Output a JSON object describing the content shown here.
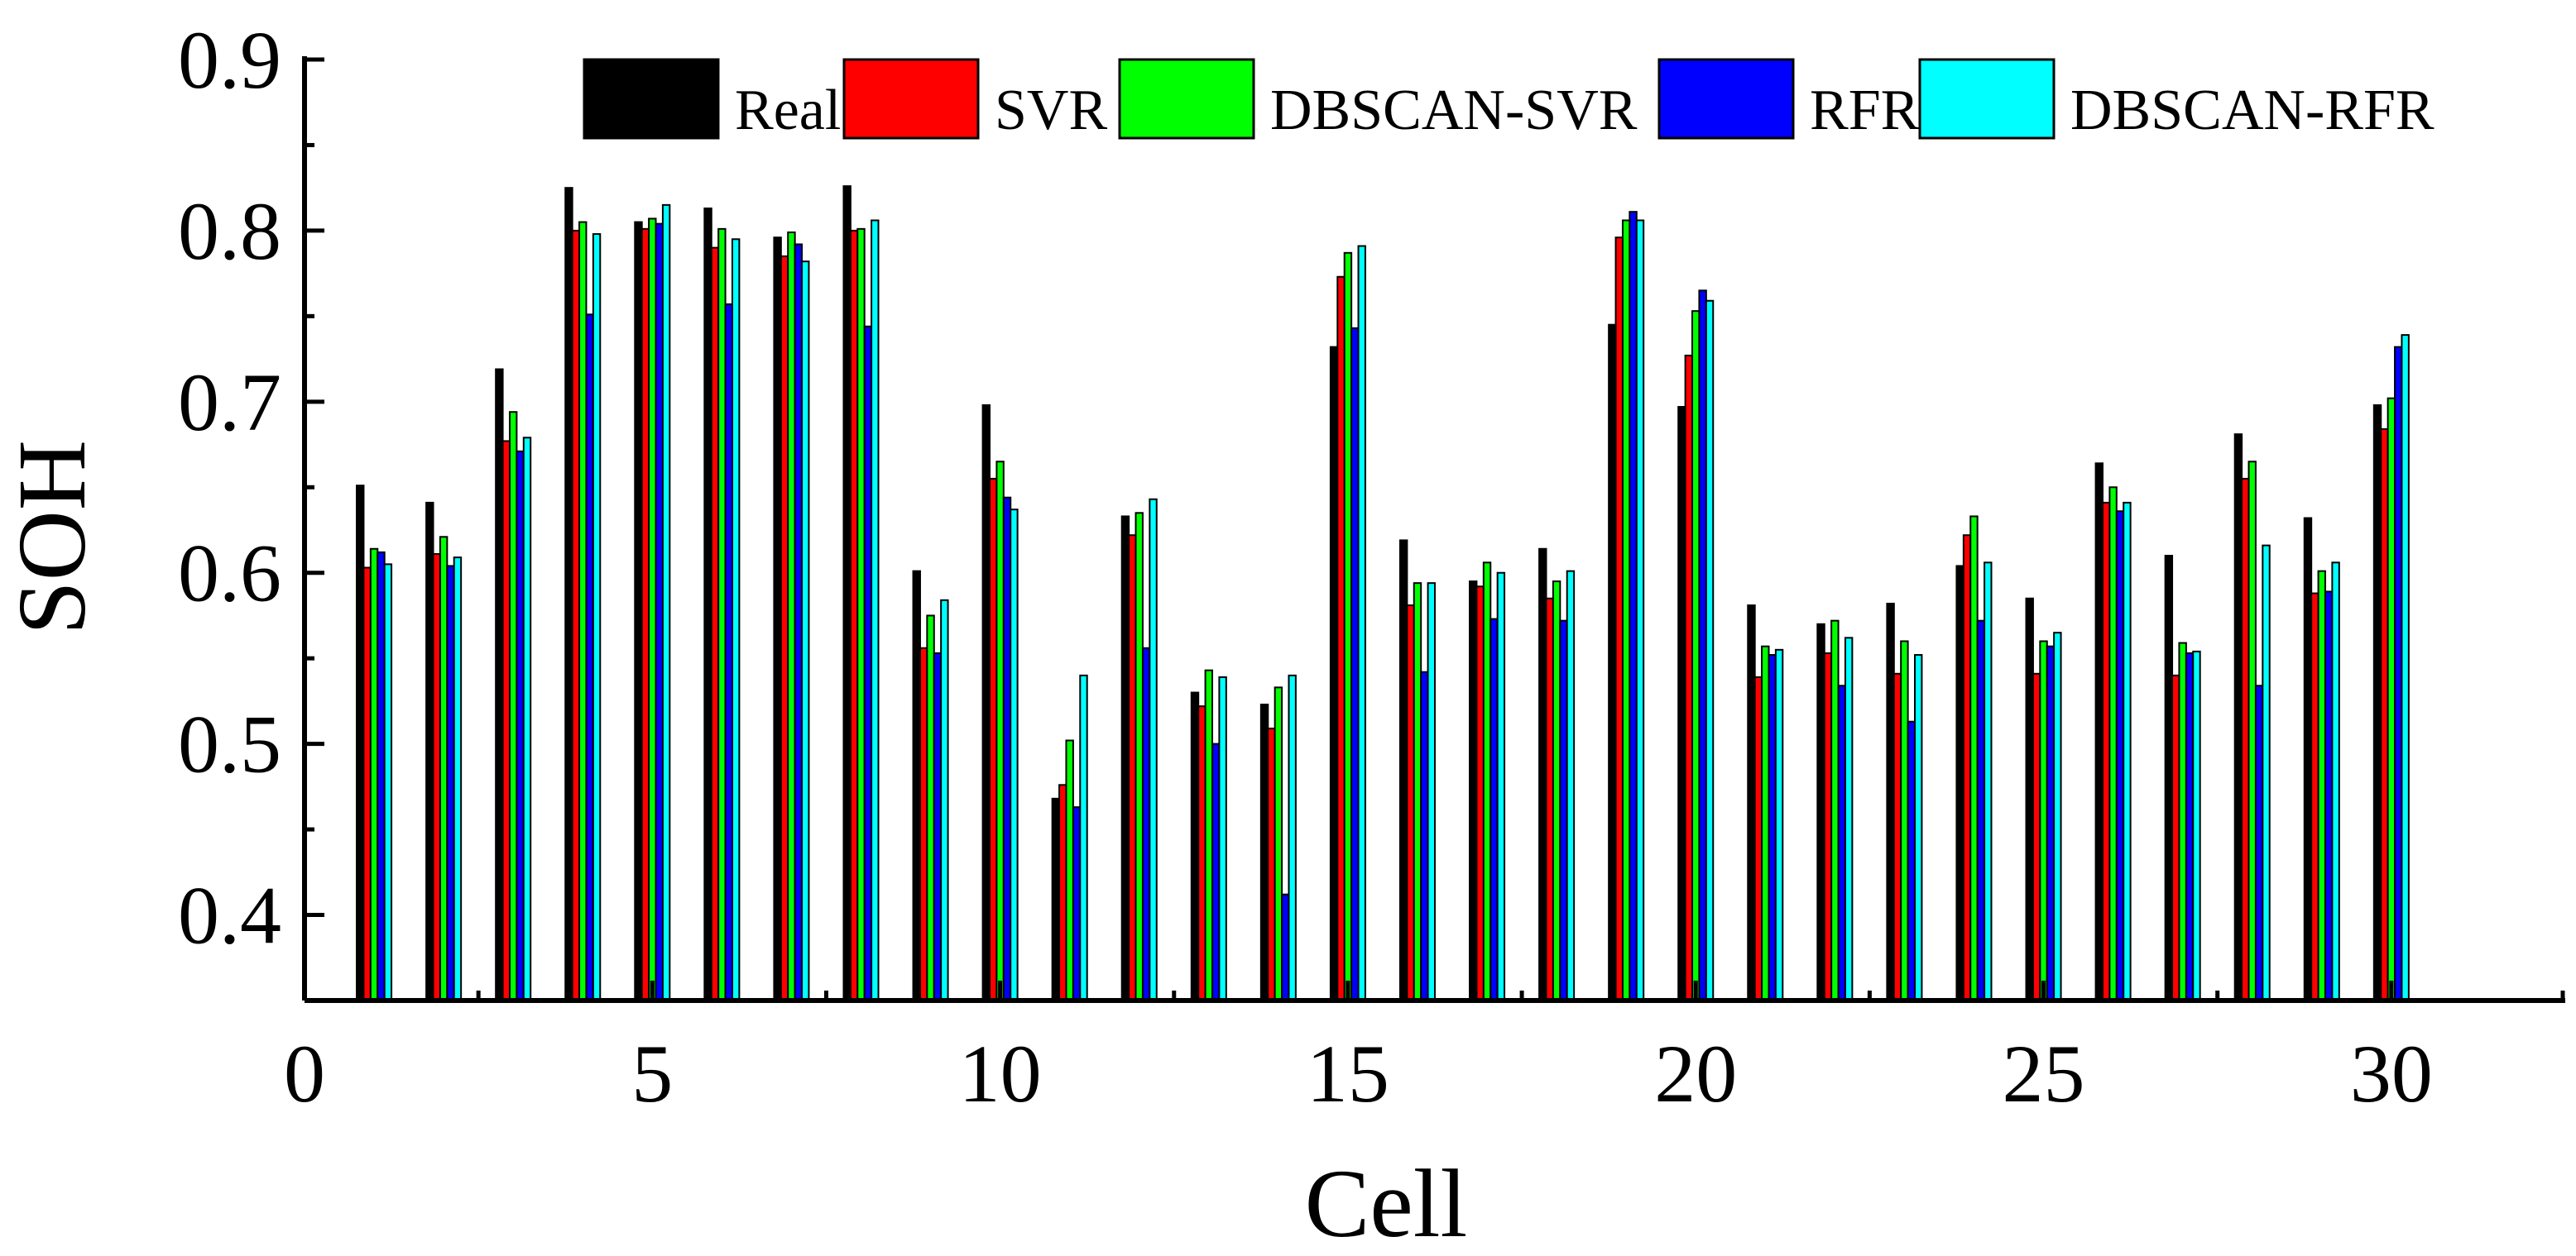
{
  "chart_data": {
    "type": "bar",
    "title": "",
    "xlabel": "Cell",
    "ylabel": "SOH",
    "xlim": [
      0,
      32.5
    ],
    "ylim": [
      0.35,
      0.9
    ],
    "xticks": [
      0,
      5,
      10,
      15,
      20,
      25,
      30
    ],
    "xtick_labels": [
      "0",
      "5",
      "10",
      "15",
      "20",
      "25",
      "30"
    ],
    "yticks": [
      0.4,
      0.5,
      0.6,
      0.7,
      0.8,
      0.9
    ],
    "ytick_labels": [
      "0.4",
      "0.5",
      "0.6",
      "0.7",
      "0.8",
      "0.9"
    ],
    "grid": false,
    "legend_position": "top",
    "categories": [
      1,
      2,
      3,
      4,
      5,
      6,
      7,
      8,
      9,
      10,
      11,
      12,
      13,
      14,
      15,
      16,
      17,
      18,
      19,
      20,
      21,
      22,
      23,
      24,
      25,
      26,
      27,
      28,
      29,
      30
    ],
    "series": [
      {
        "name": "Real",
        "color": "#000000",
        "values": [
          0.651,
          0.641,
          0.719,
          0.825,
          0.805,
          0.813,
          0.796,
          0.826,
          0.601,
          0.698,
          0.468,
          0.633,
          0.53,
          0.523,
          0.732,
          0.619,
          0.595,
          0.614,
          0.745,
          0.697,
          0.581,
          0.57,
          0.582,
          0.604,
          0.585,
          0.664,
          0.61,
          0.681,
          0.632,
          0.698
        ]
      },
      {
        "name": "SVR",
        "color": "#ff0000",
        "values": [
          0.603,
          0.611,
          0.677,
          0.8,
          0.801,
          0.79,
          0.785,
          0.8,
          0.556,
          0.655,
          0.476,
          0.622,
          0.522,
          0.509,
          0.773,
          0.581,
          0.592,
          0.585,
          0.796,
          0.727,
          0.539,
          0.553,
          0.541,
          0.622,
          0.541,
          0.641,
          0.54,
          0.655,
          0.588,
          0.684
        ]
      },
      {
        "name": "DBSCAN-SVR",
        "color": "#00ff00",
        "values": [
          0.614,
          0.621,
          0.694,
          0.805,
          0.807,
          0.801,
          0.799,
          0.801,
          0.575,
          0.665,
          0.502,
          0.635,
          0.543,
          0.533,
          0.787,
          0.594,
          0.606,
          0.595,
          0.806,
          0.753,
          0.557,
          0.572,
          0.56,
          0.633,
          0.56,
          0.65,
          0.559,
          0.665,
          0.601,
          0.702
        ]
      },
      {
        "name": "RFR",
        "color": "#0000ff",
        "values": [
          0.612,
          0.604,
          0.671,
          0.751,
          0.804,
          0.757,
          0.792,
          0.744,
          0.553,
          0.644,
          0.463,
          0.556,
          0.5,
          0.412,
          0.743,
          0.542,
          0.573,
          0.572,
          0.811,
          0.765,
          0.552,
          0.534,
          0.513,
          0.572,
          0.557,
          0.636,
          0.553,
          0.534,
          0.589,
          0.732
        ]
      },
      {
        "name": "DBSCAN-RFR",
        "color": "#00ffff",
        "values": [
          0.605,
          0.609,
          0.679,
          0.798,
          0.815,
          0.795,
          0.782,
          0.806,
          0.584,
          0.637,
          0.54,
          0.643,
          0.539,
          0.54,
          0.791,
          0.594,
          0.6,
          0.601,
          0.806,
          0.759,
          0.555,
          0.562,
          0.552,
          0.606,
          0.565,
          0.641,
          0.554,
          0.616,
          0.606,
          0.739
        ]
      }
    ]
  }
}
